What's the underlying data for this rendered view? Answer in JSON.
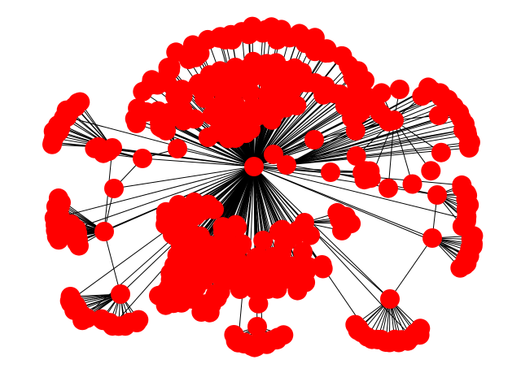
{
  "graph": {
    "node_color": "#ff0000",
    "edge_color": "#000000",
    "background": "#ffffff",
    "labels_shown": false
  }
}
